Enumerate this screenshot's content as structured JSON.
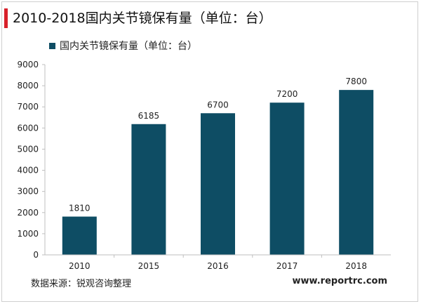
{
  "title": "2010-2018国内关节镜保有量（单位：台）",
  "source": "数据来源：锐观咨询整理",
  "website": "www.reportrc.com",
  "colors": {
    "bar": "#0e4d64",
    "accent": "#d8202a",
    "axis": "#bfbfbf"
  },
  "chart_data": {
    "type": "bar",
    "categories": [
      "2010",
      "2015",
      "2016",
      "2017",
      "2018"
    ],
    "series": [
      {
        "name": "国内关节镜保有量（单位：台）",
        "values": [
          1810,
          6185,
          6700,
          7200,
          7800
        ]
      }
    ],
    "data_labels": [
      "1810",
      "6185",
      "6700",
      "7200",
      "7800"
    ],
    "yticks": [
      "0",
      "1000",
      "2000",
      "3000",
      "4000",
      "5000",
      "6000",
      "7000",
      "8000",
      "9000"
    ],
    "ylim": [
      0,
      9000
    ],
    "grid": false,
    "legend": "top-left"
  }
}
